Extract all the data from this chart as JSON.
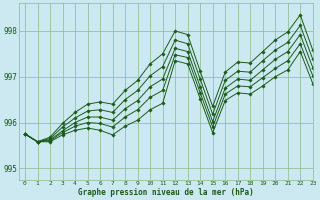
{
  "bg_color": "#cce8f0",
  "grid_color": "#88bb88",
  "line_color": "#1a5c1a",
  "marker_color": "#1a5c1a",
  "xlabel": "Graphe pression niveau de la mer (hPa)",
  "xlim": [
    -0.5,
    23
  ],
  "ylim": [
    994.75,
    998.6
  ],
  "yticks": [
    995,
    996,
    997,
    998
  ],
  "ytick_labels": [
    "995",
    "996",
    "997",
    "998"
  ],
  "xticks": [
    0,
    1,
    2,
    3,
    4,
    5,
    6,
    7,
    8,
    9,
    10,
    11,
    12,
    13,
    14,
    15,
    16,
    17,
    18,
    19,
    20,
    21,
    22,
    23
  ],
  "series": [
    [
      995.75,
      995.58,
      995.58,
      995.73,
      995.83,
      995.88,
      995.83,
      995.73,
      995.92,
      996.05,
      996.28,
      996.42,
      997.35,
      997.28,
      996.52,
      995.78,
      996.48,
      996.65,
      996.62,
      996.8,
      997.0,
      997.15,
      997.55,
      996.85
    ],
    [
      995.75,
      995.58,
      995.6,
      995.78,
      995.92,
      996.0,
      995.98,
      995.9,
      996.12,
      996.28,
      996.55,
      996.7,
      997.48,
      997.42,
      996.65,
      995.9,
      996.62,
      996.8,
      996.78,
      996.98,
      997.18,
      997.35,
      997.72,
      997.02
    ],
    [
      995.75,
      995.58,
      995.62,
      995.82,
      996.0,
      996.12,
      996.12,
      996.05,
      996.3,
      996.48,
      996.78,
      996.95,
      997.62,
      997.55,
      996.78,
      996.02,
      996.75,
      996.95,
      996.92,
      997.15,
      997.38,
      997.55,
      997.92,
      997.2
    ],
    [
      995.75,
      995.58,
      995.65,
      995.9,
      996.1,
      996.25,
      996.28,
      996.22,
      996.5,
      996.7,
      997.02,
      997.22,
      997.8,
      997.72,
      996.95,
      996.18,
      996.92,
      997.12,
      997.1,
      997.35,
      997.58,
      997.75,
      998.12,
      997.38
    ],
    [
      995.75,
      995.58,
      995.68,
      995.98,
      996.22,
      996.4,
      996.45,
      996.4,
      996.7,
      996.92,
      997.28,
      997.5,
      998.0,
      997.92,
      997.12,
      996.35,
      997.1,
      997.32,
      997.3,
      997.55,
      997.8,
      997.98,
      998.35,
      997.58
    ]
  ]
}
